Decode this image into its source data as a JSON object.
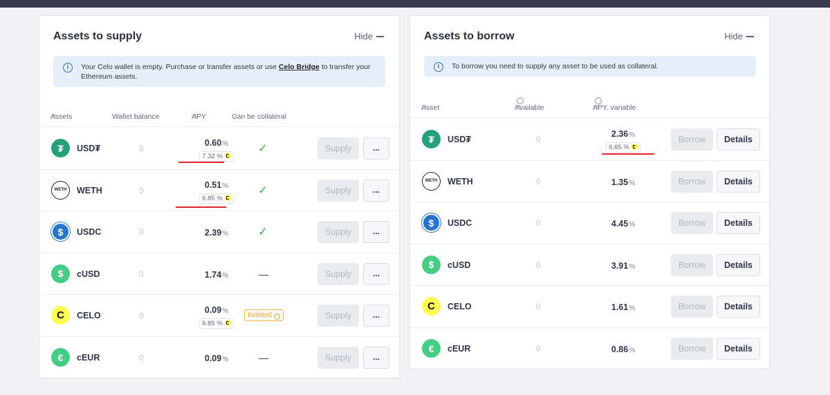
{
  "supply": {
    "title": "Assets to supply",
    "hide_label": "Hide",
    "info_pre": "Your Celo wallet is empty. Purchase or transfer assets or use ",
    "info_link": "Celo Bridge",
    "info_post": " to transfer your Ethereum assets.",
    "headers": {
      "assets": "Assets",
      "wallet": "Wallet balance",
      "apy": "APY",
      "collateral": "Can be collateral"
    },
    "supply_label": "Supply",
    "more_label": "...",
    "rows": [
      {
        "symbol": "USD₮",
        "balance": "0",
        "apy": "0.60",
        "sub_apy": "7.32 %",
        "collateral": "check"
      },
      {
        "symbol": "WETH",
        "balance": "0",
        "apy": "0.51",
        "sub_apy": "6.85 %",
        "collateral": "check"
      },
      {
        "symbol": "USDC",
        "balance": "0",
        "apy": "2.39",
        "sub_apy": "",
        "collateral": "check"
      },
      {
        "symbol": "cUSD",
        "balance": "0",
        "apy": "1.74",
        "sub_apy": "",
        "collateral": "dash"
      },
      {
        "symbol": "CELO",
        "balance": "0",
        "apy": "0.09",
        "sub_apy": "6.85 %",
        "collateral": "isolated",
        "isolated_label": "Isolated"
      },
      {
        "symbol": "cEUR",
        "balance": "0",
        "apy": "0.09",
        "sub_apy": "",
        "collateral": "dash"
      }
    ]
  },
  "borrow": {
    "title": "Assets to borrow",
    "hide_label": "Hide",
    "info": "To borrow you need to supply any asset to be used as collateral.",
    "headers": {
      "asset": "Asset",
      "available": "Available",
      "apy": "APY, variable"
    },
    "borrow_label": "Borrow",
    "details_label": "Details",
    "rows": [
      {
        "symbol": "USD₮",
        "available": "0",
        "apy": "2.36",
        "sub_apy": "6.85 %"
      },
      {
        "symbol": "WETH",
        "available": "0",
        "apy": "1.35",
        "sub_apy": ""
      },
      {
        "symbol": "USDC",
        "available": "0",
        "apy": "4.45",
        "sub_apy": ""
      },
      {
        "symbol": "cUSD",
        "available": "0",
        "apy": "3.91",
        "sub_apy": ""
      },
      {
        "symbol": "CELO",
        "available": "0",
        "apy": "1.61",
        "sub_apy": ""
      },
      {
        "symbol": "cEUR",
        "available": "0",
        "apy": "0.86",
        "sub_apy": ""
      }
    ]
  },
  "percent_sign": "%",
  "token_icons": {
    "USD₮": {
      "name": "tether-icon",
      "color": "#26a17b",
      "glyph": "₮"
    },
    "WETH": {
      "name": "weth-icon",
      "color": "#ffffff",
      "glyph": "WETH"
    },
    "USDC": {
      "name": "usdc-icon",
      "color": "#2775ca",
      "glyph": "$"
    },
    "cUSD": {
      "name": "cusd-icon",
      "color": "#45cd85",
      "glyph": "$"
    },
    "CELO": {
      "name": "celo-icon",
      "color": "#fcff52",
      "glyph": "C"
    },
    "cEUR": {
      "name": "ceur-icon",
      "color": "#45cd85",
      "glyph": "€"
    }
  },
  "colors": {
    "accent_red": "#e6232a",
    "check_green": "#4caf50",
    "isolated_orange": "#f0a21e",
    "info_bg": "#e5eff9"
  }
}
